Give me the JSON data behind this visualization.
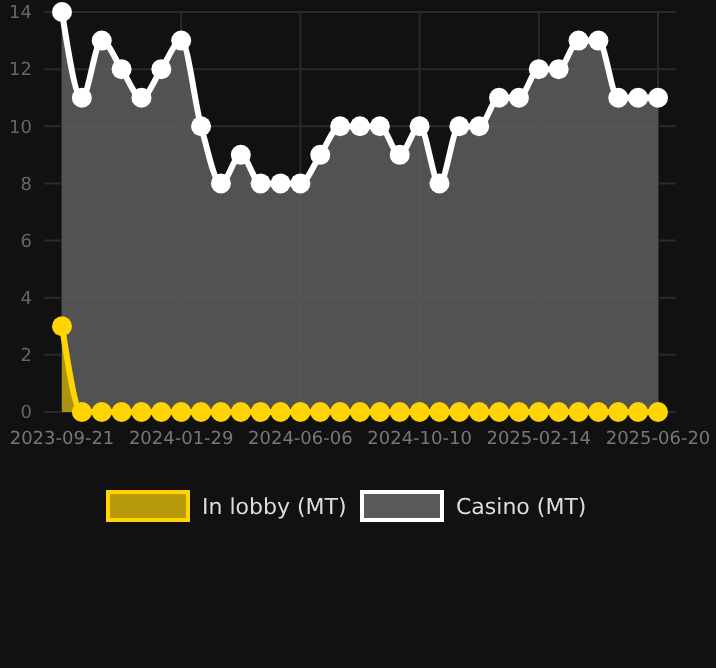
{
  "chart_data": {
    "type": "area",
    "categories": [
      "2023-09-21",
      null,
      null,
      null,
      null,
      null,
      "2024-01-29",
      null,
      null,
      null,
      null,
      null,
      "2024-06-06",
      null,
      null,
      null,
      null,
      null,
      "2024-10-10",
      null,
      null,
      null,
      null,
      null,
      "2025-02-14",
      null,
      null,
      null,
      null,
      null,
      "2025-06-20"
    ],
    "series": [
      {
        "name": "In lobby (MT)",
        "color": "#ffd400",
        "values": [
          3,
          0,
          0,
          0,
          0,
          0,
          0,
          0,
          0,
          0,
          0,
          0,
          0,
          0,
          0,
          0,
          0,
          0,
          0,
          0,
          0,
          0,
          0,
          0,
          0,
          0,
          0,
          0,
          0,
          0,
          0
        ]
      },
      {
        "name": "Casino (MT)",
        "color": "#ffffff",
        "values": [
          14,
          11,
          13,
          12,
          11,
          12,
          13,
          10,
          8,
          9,
          8,
          8,
          8,
          9,
          10,
          10,
          10,
          9,
          10,
          8,
          10,
          10,
          11,
          11,
          12,
          12,
          13,
          13,
          11,
          11,
          11
        ]
      }
    ],
    "ylim": [
      0,
      14
    ],
    "yticks": [
      0,
      2,
      4,
      6,
      8,
      10,
      12,
      14
    ],
    "grid": true,
    "legend": "bottom",
    "marker": "circle"
  }
}
